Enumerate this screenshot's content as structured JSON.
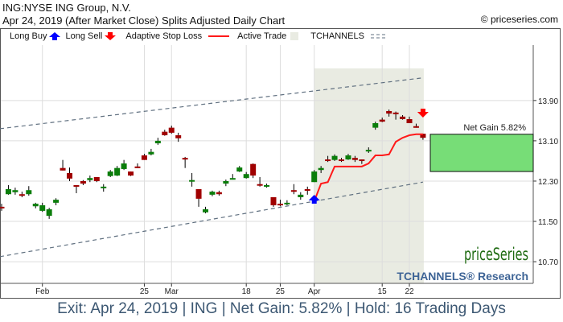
{
  "header": {
    "title": "ING:NYSE ING Group, N.V.",
    "subtitle": "Apr 24, 2019 (After Market Close)  Splits Adjusted Daily Chart",
    "copyright": "© priceseries.com"
  },
  "legend": {
    "long_buy": "Long Buy",
    "long_sell": "Long Sell",
    "stop_loss": "Adaptive Stop Loss",
    "active_trade": "Active Trade",
    "tchannels": "TCHANNELS"
  },
  "colors": {
    "up": "#0a7d0a",
    "down": "#a00000",
    "stop": "#ff1a1a",
    "buy": "#0000ff",
    "sell": "#ff0000",
    "active": "#e9ebe2",
    "gain": "#77dd77",
    "channel": "#607080",
    "brand_green": "#1f6b12",
    "brand_blue": "#3e6496"
  },
  "brand": {
    "name": "priceSeries",
    "sub": "TCHANNELS® Research"
  },
  "footer": "Exit: Apr 24, 2019 | ING | Net Gain: 5.82% | Hold: 16 Trading Days",
  "chart_data": {
    "type": "candlestick",
    "ylim": [
      10.27,
      15.0
    ],
    "y_ticks": [
      10.7,
      11.5,
      12.3,
      13.1,
      13.9
    ],
    "y_tick_labels": [
      "10.70",
      "11.50",
      "12.30",
      "13.10",
      "13.90"
    ],
    "x_ticks": [
      {
        "index": 6,
        "label": "Feb"
      },
      {
        "index": 21,
        "label": "25"
      },
      {
        "index": 25,
        "label": "Mar"
      },
      {
        "index": 36,
        "label": "18"
      },
      {
        "index": 41,
        "label": "25"
      },
      {
        "index": 46,
        "label": "Apr"
      },
      {
        "index": 56,
        "label": "15"
      },
      {
        "index": 60,
        "label": "22"
      }
    ],
    "ohlc": [
      [
        11.79,
        11.85,
        11.71,
        11.77
      ],
      [
        12.04,
        12.22,
        12.03,
        12.14
      ],
      [
        12.08,
        12.17,
        12.03,
        12.12
      ],
      [
        12.04,
        12.09,
        11.98,
        12.01
      ],
      [
        12.04,
        12.2,
        12.01,
        12.12
      ],
      [
        11.8,
        11.87,
        11.76,
        11.85
      ],
      [
        11.71,
        11.87,
        11.69,
        11.82
      ],
      [
        11.61,
        11.77,
        11.55,
        11.74
      ],
      [
        11.87,
        11.96,
        11.82,
        11.93
      ],
      [
        12.56,
        12.72,
        12.51,
        12.51
      ],
      [
        12.46,
        12.57,
        12.3,
        12.35
      ],
      [
        12.22,
        12.22,
        12.06,
        12.2
      ],
      [
        12.3,
        12.32,
        12.22,
        12.25
      ],
      [
        12.32,
        12.41,
        12.28,
        12.36
      ],
      [
        12.38,
        12.38,
        12.28,
        12.3
      ],
      [
        12.16,
        12.24,
        12.09,
        12.19
      ],
      [
        12.4,
        12.52,
        12.38,
        12.49
      ],
      [
        12.41,
        12.6,
        12.4,
        12.56
      ],
      [
        12.54,
        12.72,
        12.52,
        12.65
      ],
      [
        12.49,
        12.49,
        12.4,
        12.41
      ],
      [
        12.59,
        12.65,
        12.56,
        12.57
      ],
      [
        12.81,
        12.84,
        12.72,
        12.72
      ],
      [
        12.83,
        12.94,
        12.81,
        12.88
      ],
      [
        13.05,
        13.16,
        13.02,
        13.1
      ],
      [
        13.28,
        13.32,
        13.2,
        13.21
      ],
      [
        13.36,
        13.4,
        13.24,
        13.26
      ],
      [
        13.21,
        13.26,
        13.08,
        13.15
      ],
      [
        12.76,
        12.78,
        12.56,
        12.75
      ],
      [
        12.3,
        12.46,
        12.19,
        12.32
      ],
      [
        12.14,
        12.14,
        11.79,
        11.95
      ],
      [
        11.68,
        11.79,
        11.66,
        11.74
      ],
      [
        12.03,
        12.11,
        12.0,
        12.09
      ],
      [
        12.08,
        12.11,
        12.01,
        12.04
      ],
      [
        12.25,
        12.33,
        12.2,
        12.3
      ],
      [
        12.35,
        12.44,
        12.33,
        12.36
      ],
      [
        12.49,
        12.6,
        12.48,
        12.57
      ],
      [
        12.36,
        12.48,
        12.35,
        12.44
      ],
      [
        12.64,
        12.65,
        12.36,
        12.41
      ],
      [
        12.24,
        12.38,
        12.19,
        12.22
      ],
      [
        12.2,
        12.25,
        12.17,
        12.22
      ],
      [
        11.98,
        11.98,
        11.79,
        11.82
      ],
      [
        11.85,
        11.93,
        11.8,
        11.84
      ],
      [
        11.85,
        11.92,
        11.82,
        11.87
      ],
      [
        12.12,
        12.24,
        12.04,
        12.09
      ],
      [
        11.98,
        12.08,
        11.93,
        12.03
      ],
      [
        12.14,
        12.19,
        12.03,
        12.12
      ],
      [
        12.28,
        12.52,
        12.28,
        12.49
      ],
      [
        12.52,
        12.6,
        12.46,
        12.56
      ],
      [
        12.73,
        12.8,
        12.68,
        12.7
      ],
      [
        12.72,
        12.83,
        12.7,
        12.8
      ],
      [
        12.73,
        12.76,
        12.68,
        12.7
      ],
      [
        12.73,
        12.84,
        12.72,
        12.81
      ],
      [
        12.76,
        12.8,
        12.68,
        12.72
      ],
      [
        12.73,
        12.73,
        12.64,
        12.7
      ],
      [
        12.89,
        12.97,
        12.86,
        12.92
      ],
      [
        13.36,
        13.48,
        13.32,
        13.45
      ],
      [
        13.52,
        13.56,
        13.47,
        13.48
      ],
      [
        13.69,
        13.72,
        13.58,
        13.64
      ],
      [
        13.66,
        13.68,
        13.52,
        13.63
      ],
      [
        13.58,
        13.61,
        13.52,
        13.53
      ],
      [
        13.53,
        13.58,
        13.45,
        13.45
      ],
      [
        13.39,
        13.44,
        13.36,
        13.36
      ],
      [
        13.24,
        13.24,
        13.12,
        13.16
      ]
    ],
    "stop_loss": [
      [
        46,
        11.9
      ],
      [
        47,
        12.25
      ],
      [
        48,
        12.28
      ],
      [
        49,
        12.59
      ],
      [
        50,
        12.59
      ],
      [
        53,
        12.59
      ],
      [
        54,
        12.65
      ],
      [
        55,
        12.81
      ],
      [
        56,
        12.81
      ],
      [
        57,
        12.83
      ],
      [
        58,
        13.08
      ],
      [
        59,
        13.16
      ],
      [
        60,
        13.21
      ],
      [
        61,
        13.23
      ],
      [
        62,
        13.23
      ]
    ],
    "channel_upper": [
      [
        -0.24,
        13.34
      ],
      [
        62,
        14.35
      ]
    ],
    "channel_lower": [
      [
        -0.24,
        10.8
      ],
      [
        62,
        12.28
      ]
    ],
    "buy_index": 46,
    "sell_index": 62,
    "active_trade": [
      46,
      62
    ],
    "gain_box": {
      "low": 12.49,
      "high": 13.23,
      "label": "Net Gain 5.82%"
    }
  }
}
